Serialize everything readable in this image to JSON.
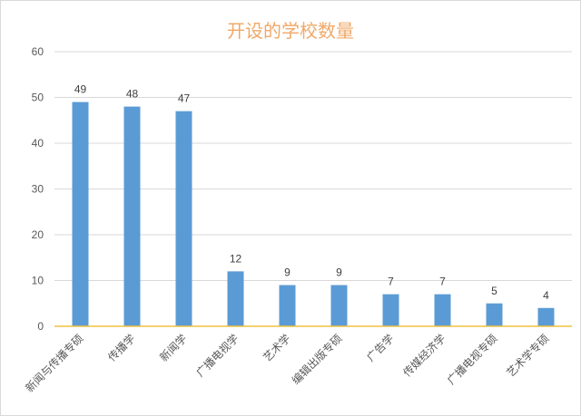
{
  "chart_data": {
    "type": "bar",
    "title": "开设的学校数量",
    "categories": [
      "新闻与传播专硕",
      "传播学",
      "新闻学",
      "广播电视学",
      "艺术学",
      "编辑出版专硕",
      "广告学",
      "传媒经济学",
      "广播电视专硕",
      "艺术学专硕"
    ],
    "values": [
      49,
      48,
      47,
      12,
      9,
      9,
      7,
      7,
      5,
      4
    ],
    "ylim": [
      0,
      60
    ],
    "yticks": [
      0,
      10,
      20,
      30,
      40,
      50,
      60
    ],
    "grid": true,
    "legend": "none",
    "colors": {
      "bar": "#5b9bd5",
      "axis": "#f0c040",
      "grid": "#d9d9d9",
      "title": "#f0a868"
    }
  }
}
